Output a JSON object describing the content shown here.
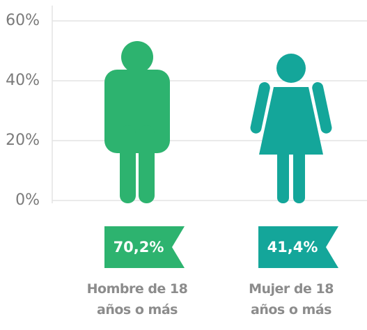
{
  "chart_data": {
    "type": "pictograph",
    "categories": [
      "Hombre de 18 años o más",
      "Mujer de 18 años o más"
    ],
    "values": [
      70.2,
      41.4
    ],
    "value_labels": [
      "70,2%",
      "41,4%"
    ],
    "colors": [
      "#2db36f",
      "#14a69a"
    ],
    "ylim": [
      0,
      60
    ],
    "yticks": [
      {
        "value": 0,
        "label": "0%"
      },
      {
        "value": 20,
        "label": "20%"
      },
      {
        "value": 40,
        "label": "40%"
      },
      {
        "value": 60,
        "label": "60%"
      }
    ],
    "grid": true
  }
}
